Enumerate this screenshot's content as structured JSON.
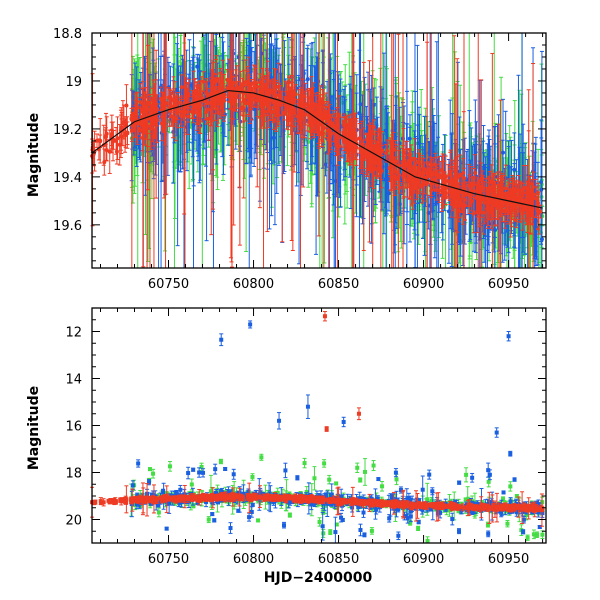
{
  "chart_data": [
    {
      "type": "scatter",
      "panel": "top",
      "title": "",
      "xlabel": "",
      "ylabel": "Magnitude",
      "xlim": [
        60705,
        60972
      ],
      "ylim": [
        19.78,
        18.8
      ],
      "y_inverted": true,
      "xticks": [
        60750,
        60800,
        60850,
        60900,
        60950
      ],
      "xtick_labels": [
        "60750",
        "60800",
        "60850",
        "60900",
        "60950"
      ],
      "yticks": [
        18.8,
        19.0,
        19.2,
        19.4,
        19.6
      ],
      "ytick_labels": [
        "18.8",
        "19",
        "19.2",
        "19.4",
        "19.6"
      ],
      "series": [
        {
          "name": "blue",
          "color": "#1a5fe0",
          "error_bars": true
        },
        {
          "name": "green",
          "color": "#44dd44",
          "error_bars": true
        },
        {
          "name": "red",
          "color": "#ee3b24",
          "error_bars": true
        }
      ],
      "trend": {
        "x": [
          60705,
          60730,
          60750,
          60770,
          60785,
          60800,
          60815,
          60830,
          60850,
          60870,
          60885,
          60895,
          60910,
          60930,
          60950,
          60970
        ],
        "y": [
          19.3,
          19.17,
          19.12,
          19.08,
          19.04,
          19.05,
          19.08,
          19.12,
          19.22,
          19.3,
          19.36,
          19.4,
          19.43,
          19.47,
          19.5,
          19.53
        ]
      }
    },
    {
      "type": "scatter",
      "panel": "bottom",
      "title": "",
      "xlabel": "HJD−2400000",
      "ylabel": "Magnitude",
      "xlim": [
        60705,
        60972
      ],
      "ylim": [
        21.0,
        11.0
      ],
      "y_inverted": true,
      "xticks": [
        60750,
        60800,
        60850,
        60900,
        60950
      ],
      "xtick_labels": [
        "60750",
        "60800",
        "60850",
        "60900",
        "60950"
      ],
      "yticks": [
        12,
        14,
        16,
        18,
        20
      ],
      "ytick_labels": [
        "12",
        "14",
        "16",
        "18",
        "20"
      ],
      "outliers": {
        "blue": [
          [
            60781,
            12.35,
            0.25
          ],
          [
            60798,
            11.7,
            0.15
          ],
          [
            60815,
            15.8,
            0.35
          ],
          [
            60832,
            15.2,
            0.5
          ],
          [
            60853,
            15.85,
            0.2
          ],
          [
            60943,
            16.3,
            0.2
          ],
          [
            60950,
            12.2,
            0.2
          ],
          [
            60951,
            17.2,
            0.1
          ],
          [
            60938,
            17.9,
            0.3
          ],
          [
            60768,
            18.0,
            0.2
          ]
        ],
        "red": [
          [
            60842,
            11.35,
            0.2
          ],
          [
            60843,
            16.15,
            0.1
          ],
          [
            60862,
            15.5,
            0.25
          ]
        ],
        "green": [
          [
            60830,
            17.6,
            0.2
          ],
          [
            60861,
            17.8,
            0.2
          ],
          [
            60925,
            18.1,
            0.3
          ]
        ]
      }
    }
  ]
}
